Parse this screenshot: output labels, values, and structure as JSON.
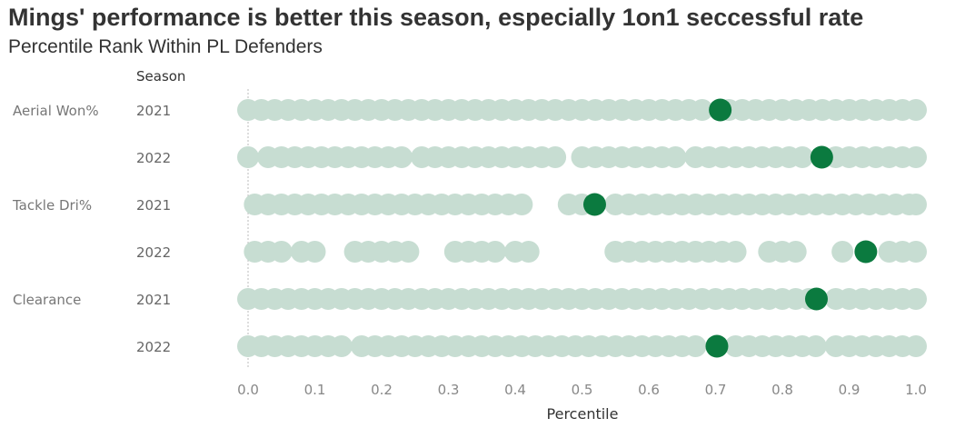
{
  "title": "Mings' performance is better this season, especially 1on1 seccessful rate",
  "subtitle": "Percentile Rank Within PL Defenders",
  "colors": {
    "background_dot": "#c7ddd2",
    "highlight_dot": "#0b7a3f",
    "zero_line": "#bbbbbb"
  },
  "chart_data": {
    "type": "scatter",
    "title": "Mings' performance is better this season, especially 1on1 seccessful rate",
    "subtitle": "Percentile Rank Within PL Defenders",
    "row_header": "Season",
    "xlabel": "Percentile",
    "xlim": [
      0,
      1
    ],
    "x_ticks": [
      "0.0",
      "0.1",
      "0.2",
      "0.3",
      "0.4",
      "0.5",
      "0.6",
      "0.7",
      "0.8",
      "0.9",
      "1.0"
    ],
    "grid": false,
    "rows": [
      {
        "metric": "Aerial Won%",
        "season": "2021",
        "highlight": 0.707,
        "points": [
          0,
          0.02,
          0.04,
          0.06,
          0.08,
          0.1,
          0.12,
          0.14,
          0.16,
          0.18,
          0.2,
          0.22,
          0.24,
          0.26,
          0.28,
          0.3,
          0.32,
          0.34,
          0.36,
          0.38,
          0.4,
          0.42,
          0.44,
          0.46,
          0.48,
          0.5,
          0.52,
          0.54,
          0.56,
          0.58,
          0.6,
          0.62,
          0.64,
          0.66,
          0.68,
          0.72,
          0.74,
          0.76,
          0.78,
          0.8,
          0.82,
          0.84,
          0.86,
          0.88,
          0.9,
          0.92,
          0.94,
          0.96,
          0.98,
          1.0
        ]
      },
      {
        "metric": "",
        "season": "2022",
        "highlight": 0.859,
        "points": [
          0,
          0.03,
          0.05,
          0.07,
          0.09,
          0.11,
          0.13,
          0.15,
          0.17,
          0.19,
          0.21,
          0.23,
          0.26,
          0.28,
          0.3,
          0.32,
          0.34,
          0.36,
          0.38,
          0.4,
          0.42,
          0.44,
          0.46,
          0.5,
          0.52,
          0.54,
          0.56,
          0.58,
          0.6,
          0.62,
          0.64,
          0.67,
          0.69,
          0.71,
          0.73,
          0.75,
          0.77,
          0.79,
          0.81,
          0.83,
          0.88,
          0.9,
          0.92,
          0.94,
          0.96,
          0.98,
          1.0
        ]
      },
      {
        "metric": "Tackle Dri%",
        "season": "2021",
        "highlight": 0.519,
        "points": [
          0.01,
          0.03,
          0.05,
          0.07,
          0.09,
          0.11,
          0.13,
          0.15,
          0.17,
          0.19,
          0.21,
          0.23,
          0.25,
          0.27,
          0.29,
          0.31,
          0.33,
          0.35,
          0.37,
          0.39,
          0.41,
          0.48,
          0.5,
          0.55,
          0.57,
          0.59,
          0.61,
          0.63,
          0.65,
          0.67,
          0.69,
          0.71,
          0.73,
          0.75,
          0.77,
          0.79,
          0.81,
          0.83,
          0.85,
          0.87,
          0.89,
          0.91,
          0.93,
          0.95,
          0.97,
          0.99,
          1.0
        ]
      },
      {
        "metric": "",
        "season": "2022",
        "highlight": 0.925,
        "points": [
          0.01,
          0.03,
          0.05,
          0.08,
          0.1,
          0.16,
          0.18,
          0.2,
          0.22,
          0.24,
          0.31,
          0.33,
          0.35,
          0.37,
          0.4,
          0.42,
          0.55,
          0.57,
          0.59,
          0.61,
          0.63,
          0.65,
          0.67,
          0.69,
          0.71,
          0.73,
          0.78,
          0.8,
          0.82,
          0.89,
          0.96,
          0.98,
          1.0
        ]
      },
      {
        "metric": "Clearance",
        "season": "2021",
        "highlight": 0.851,
        "points": [
          0,
          0.02,
          0.04,
          0.06,
          0.08,
          0.1,
          0.12,
          0.14,
          0.16,
          0.18,
          0.2,
          0.22,
          0.24,
          0.26,
          0.28,
          0.3,
          0.32,
          0.34,
          0.36,
          0.38,
          0.4,
          0.42,
          0.44,
          0.46,
          0.48,
          0.5,
          0.52,
          0.54,
          0.56,
          0.58,
          0.6,
          0.62,
          0.64,
          0.66,
          0.68,
          0.7,
          0.72,
          0.74,
          0.76,
          0.78,
          0.8,
          0.82,
          0.84,
          0.88,
          0.9,
          0.92,
          0.94,
          0.96,
          0.98,
          1.0
        ]
      },
      {
        "metric": "",
        "season": "2022",
        "highlight": 0.702,
        "points": [
          0,
          0.02,
          0.04,
          0.06,
          0.08,
          0.1,
          0.12,
          0.14,
          0.17,
          0.19,
          0.21,
          0.23,
          0.25,
          0.27,
          0.29,
          0.31,
          0.33,
          0.35,
          0.37,
          0.39,
          0.41,
          0.43,
          0.45,
          0.47,
          0.49,
          0.51,
          0.53,
          0.55,
          0.57,
          0.59,
          0.61,
          0.63,
          0.65,
          0.67,
          0.73,
          0.75,
          0.77,
          0.79,
          0.81,
          0.83,
          0.85,
          0.88,
          0.9,
          0.92,
          0.94,
          0.96,
          0.98,
          1.0
        ]
      }
    ]
  }
}
